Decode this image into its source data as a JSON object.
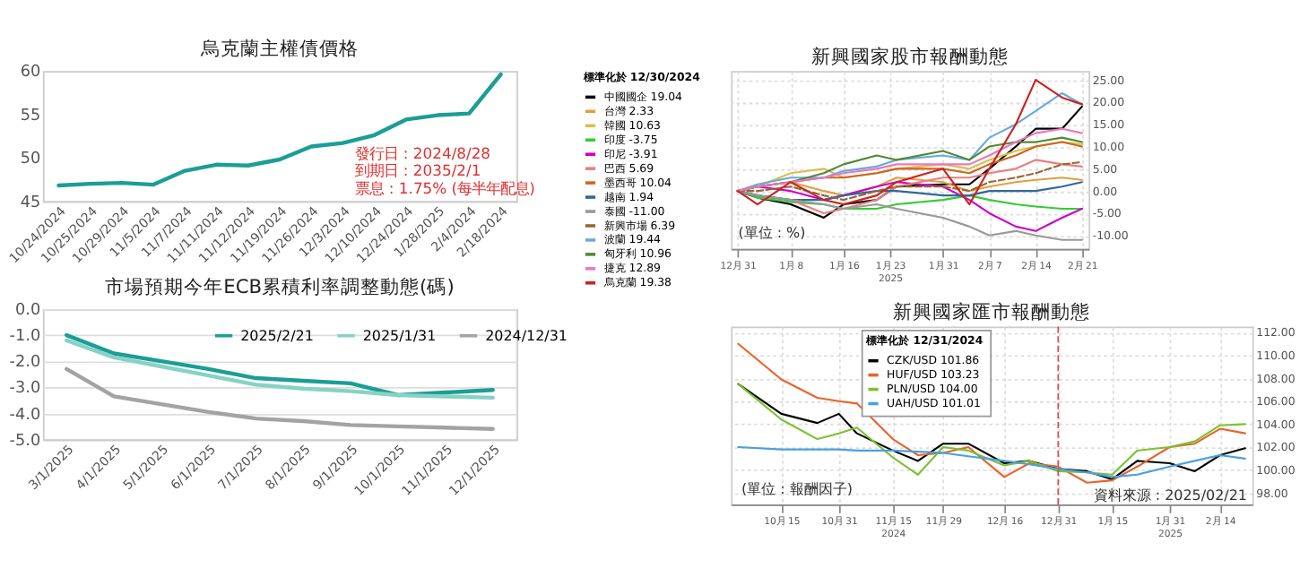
{
  "chart_data": [
    {
      "type": "line",
      "title": "烏克蘭主權債價格",
      "categories": [
        "10/24/2024",
        "10/25/2024",
        "10/29/2024",
        "11/5/2024",
        "11/7/2024",
        "11/11/2024",
        "11/12/2024",
        "11/19/2024",
        "11/26/2024",
        "12/3/2024",
        "12/10/2024",
        "12/24/2024",
        "1/28/2025",
        "2/4/2024",
        "2/18/2024"
      ],
      "values": [
        46.8,
        47.0,
        47.1,
        46.9,
        48.5,
        49.2,
        49.1,
        49.8,
        51.3,
        51.7,
        52.6,
        54.4,
        54.9,
        55.1,
        59.6
      ],
      "color": "#1a9e96",
      "ylim": [
        45,
        60
      ],
      "yticks": [
        45,
        50,
        55,
        60
      ],
      "grid": false,
      "legend": false,
      "annotations": [
        "發行日 : 2024/8/28",
        "到期日 : 2035/2/1",
        "票息 : 1.75% (每半年配息)"
      ]
    },
    {
      "type": "line",
      "title": "市場預期今年ECB累積利率調整動態(碼)",
      "categories": [
        "3/1/2025",
        "4/1/2025",
        "5/1/2025",
        "6/1/2025",
        "7/1/2025",
        "8/1/2025",
        "9/1/2025",
        "10/1/2025",
        "11/1/2025",
        "12/1/2025"
      ],
      "series": [
        {
          "name": "2025/2/21",
          "color": "#1a9e96",
          "values": [
            -1.0,
            -1.7,
            -2.0,
            -2.3,
            -2.65,
            -2.75,
            -2.85,
            -3.3,
            -3.2,
            -3.1
          ]
        },
        {
          "name": "2025/1/31",
          "color": "#86d2c4",
          "values": [
            -1.2,
            -1.85,
            -2.2,
            -2.55,
            -2.9,
            -3.05,
            -3.15,
            -3.3,
            -3.35,
            -3.4
          ]
        },
        {
          "name": "2024/12/31",
          "color": "#a3a3a3",
          "values": [
            -2.3,
            -3.35,
            -3.65,
            -3.95,
            -4.2,
            -4.3,
            -4.45,
            -4.5,
            -4.55,
            -4.6
          ]
        }
      ],
      "ylim": [
        -5,
        0
      ],
      "yticks": [
        {
          "value": 0,
          "label": "0.0"
        },
        {
          "value": -1,
          "label": "-1.0"
        },
        {
          "value": -2,
          "label": "-2.0"
        },
        {
          "value": -3,
          "label": "-3.0"
        },
        {
          "value": -4,
          "label": "-4.0"
        },
        {
          "value": -5,
          "label": "-5.0"
        }
      ],
      "grid": "y",
      "legend": "top right"
    },
    {
      "type": "line",
      "title": "新興國家股市報酬動態",
      "legend_title": "標準化於 12/30/2024",
      "x": [
        "2024-12-31",
        "2025-01-03",
        "2025-01-08",
        "2025-01-13",
        "2025-01-16",
        "2025-01-21",
        "2025-01-24",
        "2025-01-31",
        "2025-02-04",
        "2025-02-07",
        "2025-02-11",
        "2025-02-14",
        "2025-02-18",
        "2025-02-21"
      ],
      "series": [
        {
          "name": "中國國企 19.04",
          "color": "#000000",
          "axis": "y2",
          "values": [
            0,
            -1.5,
            -3,
            -6,
            -3,
            -2,
            1,
            1.5,
            1.5,
            5,
            10,
            14,
            14,
            19
          ]
        },
        {
          "name": "台灣 2.33",
          "color": "#e0a040",
          "axis": "y2",
          "values": [
            0,
            1,
            2,
            0,
            -1,
            1,
            3,
            2,
            0,
            1,
            2,
            2.5,
            3,
            2.5
          ]
        },
        {
          "name": "韓國 10.63",
          "color": "#d8c050",
          "axis": "y2",
          "values": [
            0,
            1,
            4,
            5,
            3,
            4,
            5,
            6,
            5,
            7,
            9,
            10,
            11,
            10.5
          ]
        },
        {
          "name": "印度 -3.75",
          "color": "#33cc33",
          "axis": "y2",
          "values": [
            0,
            -1.5,
            -2.5,
            -3,
            -4,
            -4,
            -3,
            -2,
            -1,
            -2,
            -3,
            -3.5,
            -4,
            -4
          ]
        },
        {
          "name": "印尼 -3.91",
          "color": "#cc00cc",
          "axis": "y2",
          "values": [
            0,
            1,
            0,
            -2,
            -1,
            1,
            2,
            1,
            -2,
            -5,
            -8,
            -9,
            -6,
            -4
          ]
        },
        {
          "name": "巴西 5.69",
          "color": "#e88080",
          "axis": "y2",
          "values": [
            0,
            -1,
            -2,
            -5,
            -4,
            -2,
            1,
            3,
            3,
            4,
            5,
            7,
            6,
            5.5
          ]
        },
        {
          "name": "墨西哥 10.04",
          "color": "#cc6622",
          "axis": "y2",
          "values": [
            0,
            1,
            2,
            3,
            3,
            4,
            5,
            5,
            4,
            6,
            8,
            10,
            11,
            10
          ]
        },
        {
          "name": "越南 1.94",
          "color": "#336699",
          "axis": "y2",
          "values": [
            0,
            -1,
            -2,
            -2,
            -1,
            0,
            0,
            -1,
            -1,
            0,
            0,
            0,
            1,
            2
          ]
        },
        {
          "name": "泰國 -11.00",
          "color": "#999999",
          "axis": "y2",
          "values": [
            0,
            -1,
            -2,
            -3,
            -4,
            -3,
            -4,
            -6,
            -8,
            -10,
            -9,
            -10,
            -11,
            -11
          ]
        },
        {
          "name": "新興市場 6.39",
          "color": "#996633",
          "axis": "y2",
          "line_style": "dashed",
          "values": [
            0,
            0,
            1,
            -1,
            -2,
            0,
            1,
            1,
            0,
            2,
            3,
            4,
            6,
            6.5
          ]
        },
        {
          "name": "波蘭 19.44",
          "color": "#66aadd",
          "axis": "y2",
          "values": [
            0,
            1.5,
            3,
            3,
            4.5,
            5.5,
            7,
            8,
            7,
            12,
            15,
            18,
            22,
            19.5
          ]
        },
        {
          "name": "匈牙利 10.96",
          "color": "#558833",
          "axis": "y2",
          "values": [
            0,
            1,
            2,
            4,
            6,
            8,
            7,
            9,
            7,
            10,
            11,
            11,
            12,
            11
          ]
        },
        {
          "name": "捷克 12.89",
          "color": "#ee77bb",
          "axis": "y2",
          "values": [
            0,
            1,
            2,
            3,
            4,
            5,
            6,
            6,
            6,
            8,
            11,
            13,
            14,
            13
          ]
        },
        {
          "name": "烏克蘭 19.38",
          "color": "#cc2222",
          "axis": "y2",
          "values": [
            0,
            -3,
            2,
            -2,
            -3,
            -1,
            2,
            5,
            -3,
            5,
            15,
            25,
            21,
            19.5
          ]
        }
      ],
      "xlim": [
        "2024-12-30",
        "2025-02-22"
      ],
      "xticks": [
        {
          "value": "2024-12-31",
          "label": "12月 31"
        },
        {
          "value": "2025-01-08",
          "label": "1月 8"
        },
        {
          "value": "2025-01-16",
          "label": "1月 16"
        },
        {
          "value": "2025-01-23",
          "label": "1月 23\n2025"
        },
        {
          "value": "2025-01-31",
          "label": "1月 31"
        },
        {
          "value": "2025-02-07",
          "label": "2月 7"
        },
        {
          "value": "2025-02-14",
          "label": "2月 14"
        },
        {
          "value": "2025-02-21",
          "label": "2月 21"
        }
      ],
      "y2lim": [
        -13,
        27
      ],
      "y2ticks": [
        {
          "value": -10,
          "label": "-10.00"
        },
        {
          "value": -5,
          "label": "-5.00"
        },
        {
          "value": 0,
          "label": "0.00"
        },
        {
          "value": 5,
          "label": "5.00"
        },
        {
          "value": 10,
          "label": "10.00"
        },
        {
          "value": 15,
          "label": "15.00"
        },
        {
          "value": 20,
          "label": "20.00"
        },
        {
          "value": 25,
          "label": "25.00"
        }
      ],
      "grid": true,
      "legend": "left",
      "annotations": [
        "(單位 : %)"
      ]
    },
    {
      "type": "line",
      "title": "新興國家匯市報酬動態",
      "legend_title": "標準化於 12/31/2024",
      "x": [
        "2024-10-03",
        "2024-10-15",
        "2024-10-25",
        "2024-10-31",
        "2024-11-05",
        "2024-11-15",
        "2024-11-22",
        "2024-11-29",
        "2024-12-06",
        "2024-12-16",
        "2024-12-23",
        "2024-12-31",
        "2025-01-08",
        "2025-01-15",
        "2025-01-22",
        "2025-01-31",
        "2025-02-07",
        "2025-02-14",
        "2025-02-21"
      ],
      "series": [
        {
          "name": "CZK/USD 101.86",
          "color": "#000000",
          "axis": "y2",
          "values": [
            107.5,
            104.9,
            104.1,
            104.9,
            103.2,
            101.7,
            100.8,
            102.3,
            102.3,
            100.6,
            100.8,
            100.1,
            99.9,
            99.2,
            100.8,
            100.6,
            99.9,
            101.3,
            101.9
          ]
        },
        {
          "name": "HUF/USD 103.23",
          "color": "#e8642a",
          "axis": "y2",
          "values": [
            111,
            107.9,
            106.3,
            106.0,
            105.8,
            102.7,
            101.3,
            101.5,
            102,
            99.4,
            100.6,
            100.3,
            98.9,
            99.1,
            100.3,
            102,
            102.3,
            103.6,
            103.2
          ]
        },
        {
          "name": "PLN/USD 104.00",
          "color": "#7ac231",
          "axis": "y2",
          "values": [
            107.5,
            104.4,
            102.7,
            103.2,
            103.7,
            101.1,
            99.6,
            102,
            101.7,
            100.4,
            100.8,
            99.9,
            99.8,
            99.6,
            101.7,
            102,
            102.5,
            103.9,
            104.0
          ]
        },
        {
          "name": "UAH/USD 101.01",
          "color": "#4aa0e0",
          "axis": "y2",
          "values": [
            102,
            101.8,
            101.8,
            101.8,
            101.7,
            101.7,
            101.6,
            101.5,
            101.2,
            100.8,
            100.5,
            100.1,
            99.8,
            99.4,
            99.6,
            100.3,
            100.8,
            101.3,
            101.0
          ]
        }
      ],
      "xlim": [
        "2024-10-01",
        "2025-02-23"
      ],
      "xticks": [
        {
          "value": "2024-10-15",
          "label": "10月 15"
        },
        {
          "value": "2024-10-31",
          "label": "10月 31"
        },
        {
          "value": "2024-11-15",
          "label": "11月 15\n2024"
        },
        {
          "value": "2024-11-29",
          "label": "11月 29"
        },
        {
          "value": "2024-12-16",
          "label": "12月 16"
        },
        {
          "value": "2024-12-31",
          "label": "12月 31"
        },
        {
          "value": "2025-01-15",
          "label": "1月 15"
        },
        {
          "value": "2025-01-31",
          "label": "1月 31\n2025"
        },
        {
          "value": "2025-02-14",
          "label": "2月 14"
        }
      ],
      "y2lim": [
        97,
        112.5
      ],
      "y2ticks": [
        {
          "value": 98,
          "label": "98.00"
        },
        {
          "value": 100,
          "label": "100.00"
        },
        {
          "value": 102,
          "label": "102.00"
        },
        {
          "value": 104,
          "label": "104.00"
        },
        {
          "value": 106,
          "label": "106.00"
        },
        {
          "value": 108,
          "label": "108.00"
        },
        {
          "value": 110,
          "label": "110.00"
        },
        {
          "value": 112,
          "label": "112.00"
        }
      ],
      "ref_lines": [
        {
          "axis": "x",
          "value": "2024-12-31",
          "color": "#e05050",
          "line_style": "dashed"
        }
      ],
      "grid": true,
      "legend": "top",
      "annotations": [
        "(單位 : 報酬因子)",
        "資料來源 : 2025/02/21"
      ]
    }
  ]
}
